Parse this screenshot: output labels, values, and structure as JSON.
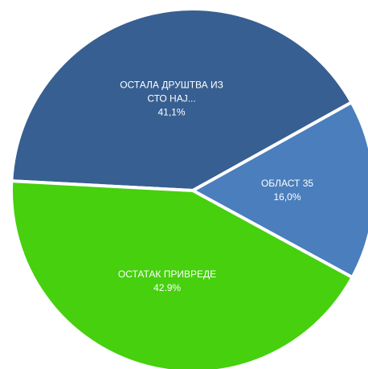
{
  "chart_data": {
    "type": "pie",
    "categories": [
      "ОСТАЛА ДРУШТВА ИЗ СТО НАЈ...",
      "ОБЛАСТ 35",
      "ОСТАТАК ПРИВРЕДЕ"
    ],
    "values": [
      41.1,
      16.0,
      42.9
    ],
    "value_labels": [
      "41,1%",
      "16,0%",
      "42.9%"
    ],
    "colors": [
      "#375f91",
      "#4a7ebd",
      "#46d00e"
    ]
  }
}
